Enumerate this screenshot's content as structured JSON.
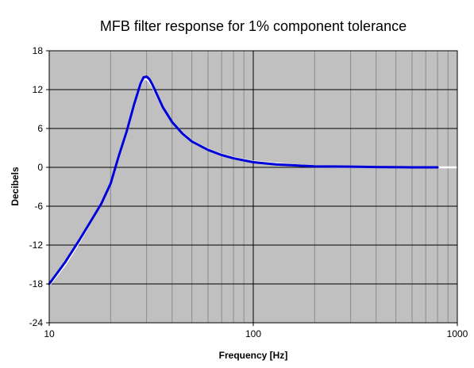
{
  "chart_data": {
    "type": "line",
    "title": "MFB filter response for 1% component tolerance",
    "xlabel": "Frequency [Hz]",
    "ylabel": "Decibels",
    "xscale": "log",
    "xlim": [
      10,
      1000
    ],
    "ylim": [
      -24,
      18
    ],
    "xticks": [
      10,
      100,
      1000
    ],
    "xtick_labels": [
      "10",
      "100",
      "1000"
    ],
    "yticks": [
      18,
      12,
      6,
      0,
      -6,
      -12,
      -18,
      -24
    ],
    "ytick_labels": [
      "18",
      "12",
      "6",
      "0",
      "-6",
      "-12",
      "-18",
      "-24"
    ],
    "grid": true,
    "legend": "none",
    "colors": {
      "plot_background": "#c0c0c0",
      "grid_major": "#000000",
      "grid_minor": "#8c8c8c",
      "series_main": "#0000d8",
      "series_tolerance": "#ffffff"
    },
    "series": [
      {
        "role": "tolerance",
        "x": [
          10,
          12,
          14,
          16,
          18,
          20,
          22,
          24,
          26,
          28,
          29,
          30,
          31,
          32,
          34,
          36,
          40,
          45,
          50,
          60,
          70,
          80,
          100,
          130,
          160,
          200,
          300,
          400,
          600,
          800,
          1000
        ],
        "y": [
          -18.2,
          -15.0,
          -11.6,
          -8.4,
          -5.5,
          -2.6,
          1.7,
          5.4,
          9.4,
          12.7,
          13.6,
          13.6,
          13.2,
          12.5,
          10.8,
          9.2,
          7.0,
          5.3,
          4.1,
          2.8,
          2.0,
          1.5,
          0.9,
          0.6,
          0.35,
          0.2,
          0.1,
          0.05,
          0.0,
          0.0,
          0.0
        ]
      },
      {
        "role": "main",
        "x": [
          10,
          12,
          14,
          16,
          18,
          20,
          22,
          24,
          26,
          28,
          29,
          30,
          31,
          32,
          34,
          36,
          40,
          45,
          50,
          60,
          70,
          80,
          100,
          130,
          160,
          200,
          300,
          400,
          600,
          800
        ],
        "y": [
          -18.0,
          -14.6,
          -11.3,
          -8.3,
          -5.6,
          -2.5,
          1.9,
          5.6,
          9.6,
          12.9,
          13.9,
          14.0,
          13.6,
          12.8,
          11.0,
          9.3,
          7.0,
          5.2,
          4.0,
          2.7,
          1.9,
          1.4,
          0.8,
          0.45,
          0.3,
          0.15,
          0.1,
          0.05,
          0.0,
          0.0
        ]
      }
    ]
  }
}
